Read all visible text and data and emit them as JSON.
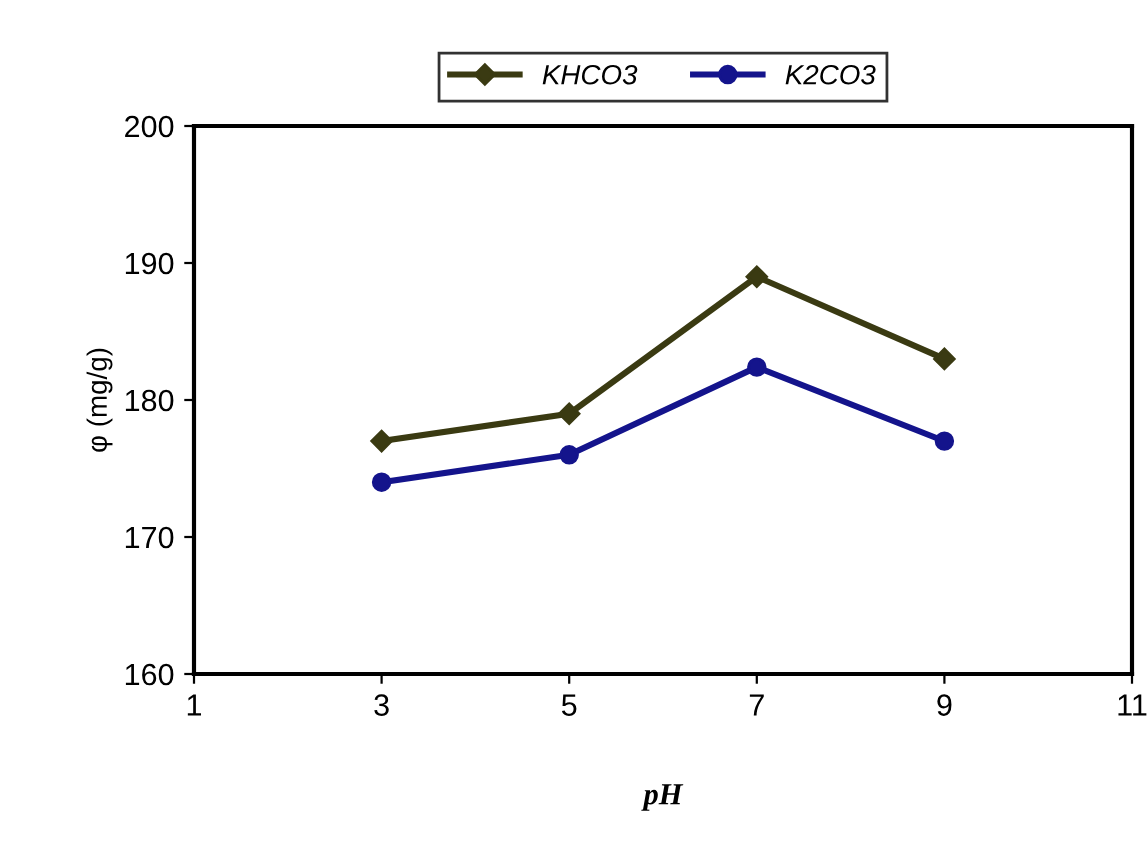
{
  "chart_data": {
    "type": "line",
    "xlabel": "pH",
    "ylabel": "φ (mg/g)",
    "x": [
      3,
      5,
      7,
      9
    ],
    "series": [
      {
        "name": "KHCO3",
        "color": "#3a3a12",
        "values": [
          177,
          179,
          189,
          183
        ],
        "marker": "diamond"
      },
      {
        "name": "K2CO3",
        "color": "#14148c",
        "values": [
          174,
          176,
          182.4,
          177
        ],
        "marker": "circle"
      }
    ],
    "xlim": [
      1,
      11
    ],
    "xticks": [
      1,
      3,
      5,
      7,
      9,
      11
    ],
    "ylim": [
      160,
      200
    ],
    "yticks": [
      160,
      170,
      180,
      190,
      200
    ],
    "grid": false,
    "legend": "top",
    "line_style": "solid"
  }
}
